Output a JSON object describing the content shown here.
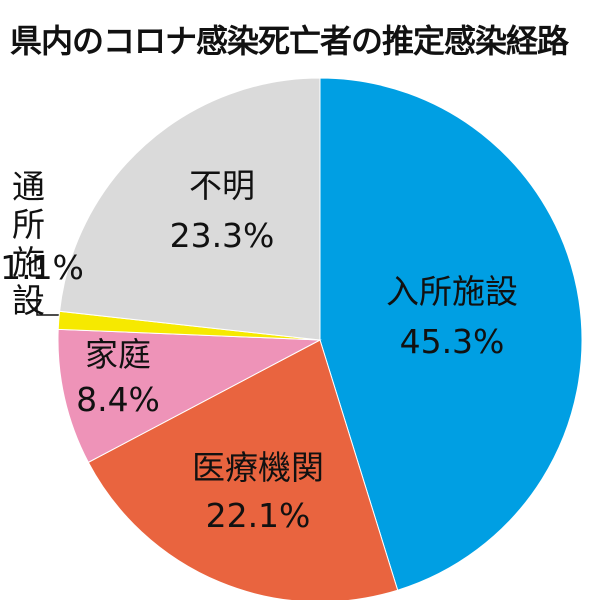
{
  "chart_data": {
    "type": "pie",
    "title": "県内のコロナ感染死亡者の推定感染経路",
    "categories": [
      "入所施設",
      "医療機関",
      "家庭",
      "通所施設",
      "不明"
    ],
    "values": [
      45.3,
      22.1,
      8.4,
      1.1,
      23.3
    ],
    "value_labels": [
      "45.3%",
      "22.1%",
      "8.4%",
      "1.1%",
      "23.3%"
    ],
    "colors": [
      "#009fe3",
      "#e9643f",
      "#ee93b8",
      "#f6e900",
      "#dadada"
    ]
  }
}
